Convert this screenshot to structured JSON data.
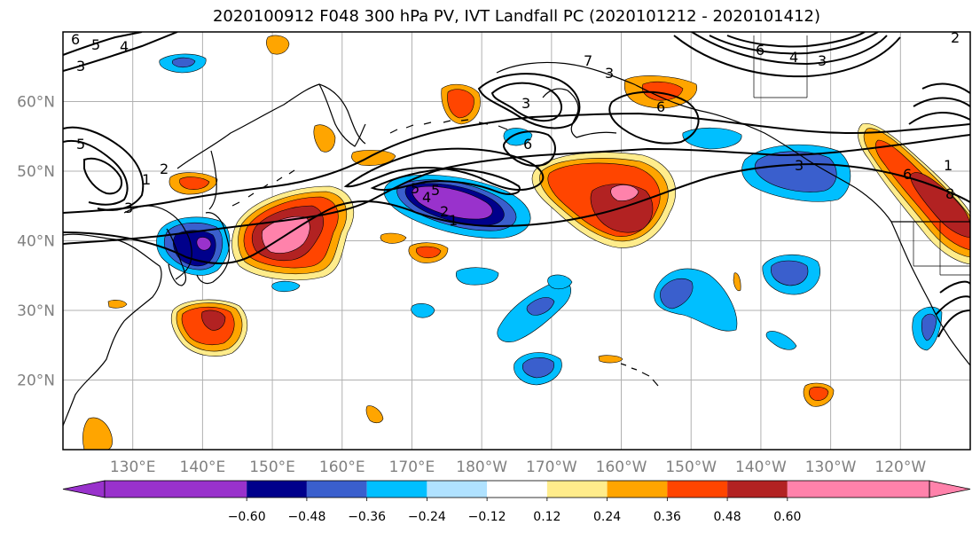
{
  "title": "2020100912 F048 300 hPa PV, IVT Landfall PC (2020101212 - 2020101412)",
  "map": {
    "lat_labels": [
      "60°N",
      "50°N",
      "40°N",
      "30°N",
      "20°N"
    ],
    "lon_labels": [
      "130°E",
      "140°E",
      "150°E",
      "160°E",
      "170°E",
      "180°W",
      "170°W",
      "160°W",
      "150°W",
      "140°W",
      "130°W",
      "120°W"
    ],
    "extent": {
      "lon_min": 120,
      "lon_max": 250,
      "lat_min": 10,
      "lat_max": 70
    }
  },
  "colorbar": {
    "tick_labels": [
      "−0.60",
      "−0.48",
      "−0.36",
      "−0.24",
      "−0.12",
      "0.12",
      "0.24",
      "0.36",
      "0.48",
      "0.60"
    ],
    "colors": [
      "#9932cc",
      "#00008b",
      "#3a5fcd",
      "#00bfff",
      "#b0e2ff",
      "#ffffff",
      "#ffec8b",
      "#ffa500",
      "#ff4500",
      "#b22222",
      "#ff82ab"
    ]
  },
  "contour_labels": [
    "6",
    "5",
    "4",
    "3",
    "3",
    "5",
    "2",
    "1",
    "3",
    "7",
    "3",
    "5",
    "6",
    "6",
    "5",
    "4",
    "2",
    "1",
    "6",
    "4",
    "3",
    "2",
    "3",
    "1",
    "6",
    "8"
  ]
}
